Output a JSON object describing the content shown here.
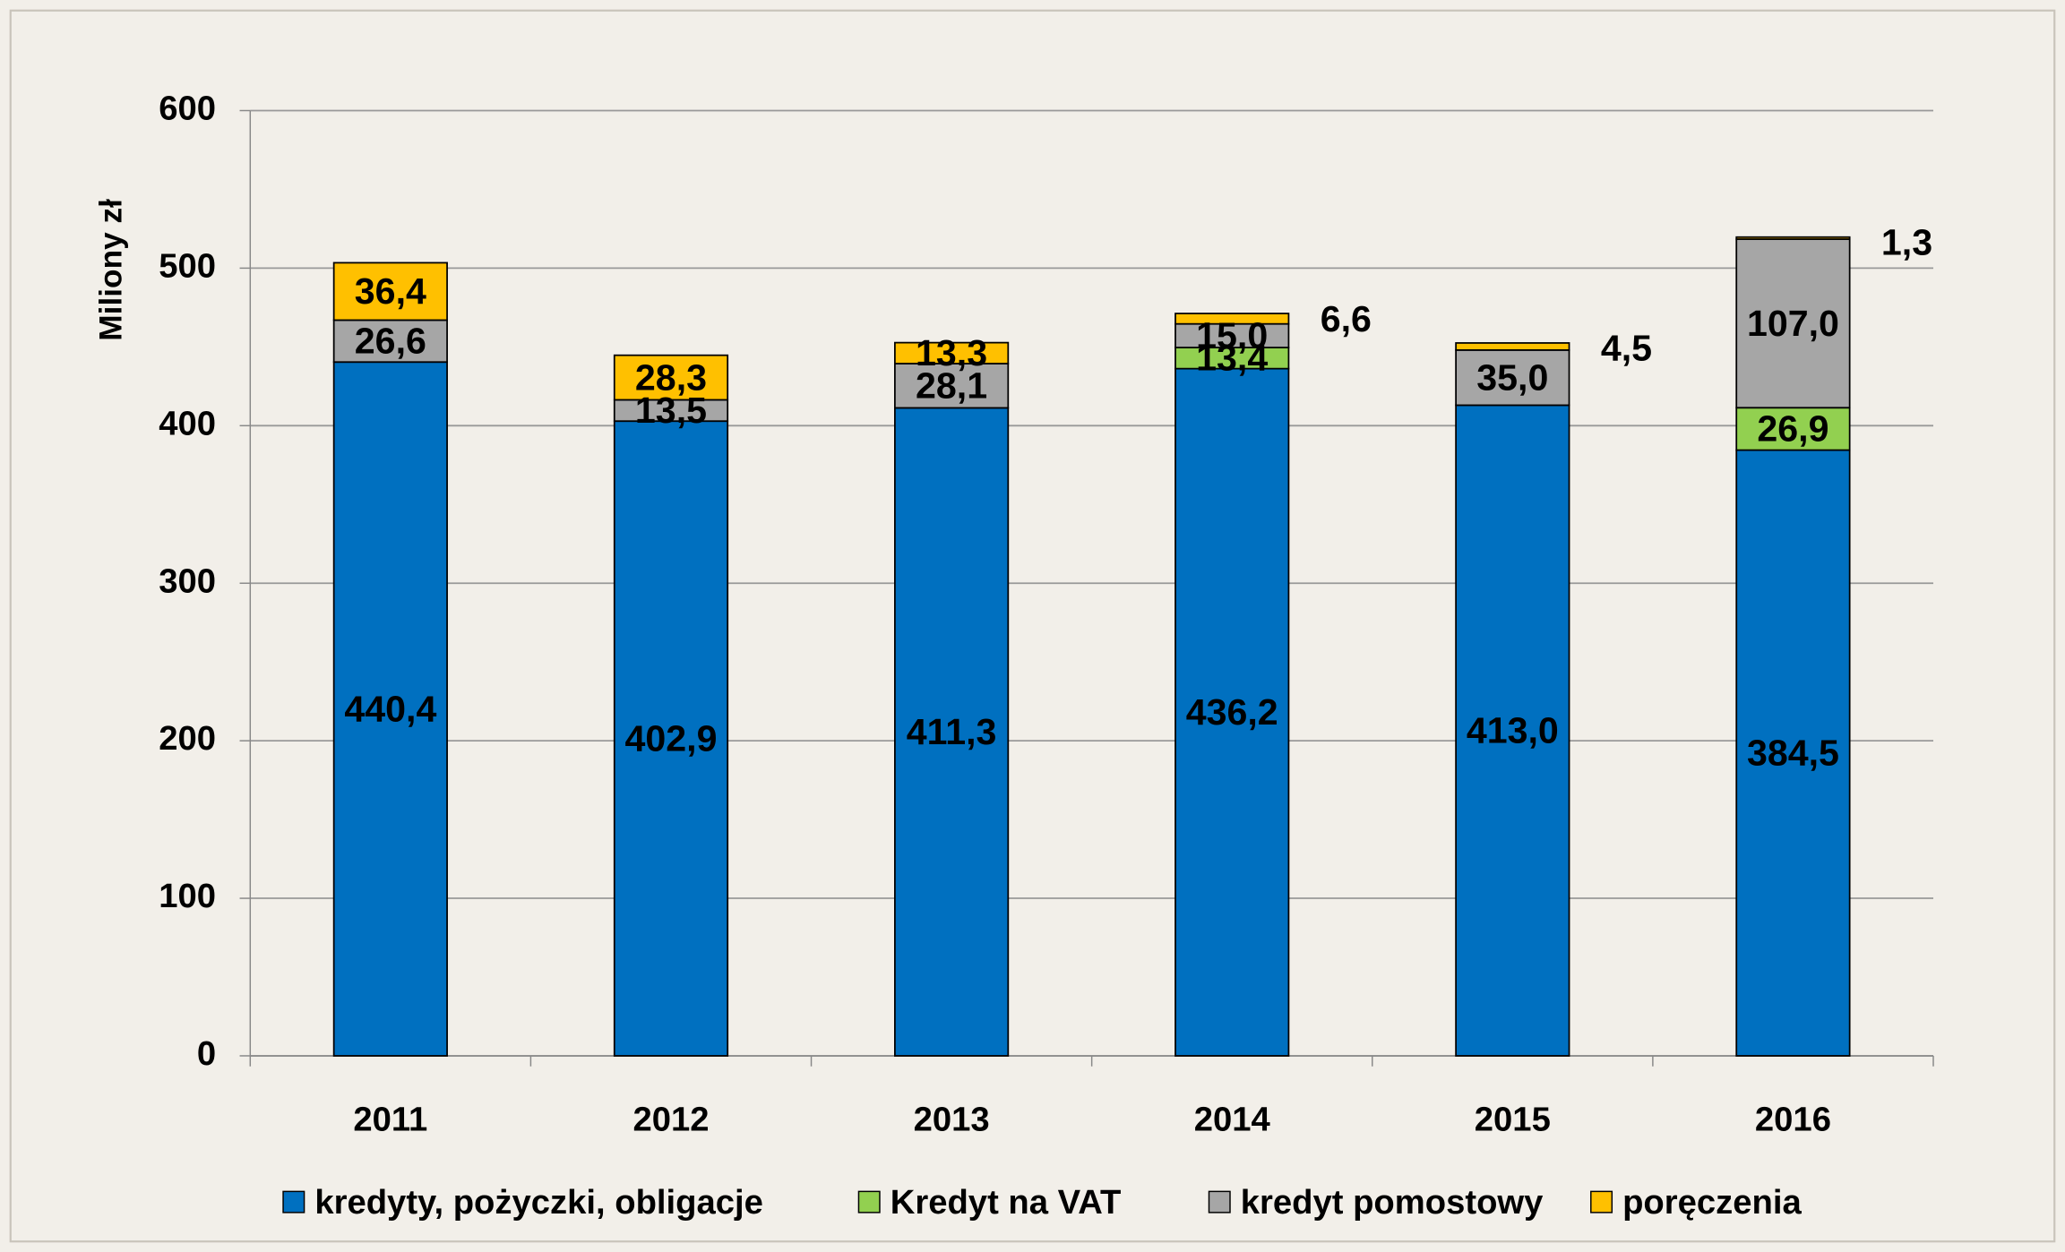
{
  "chart_data": {
    "type": "stacked_bar",
    "y_label": "Miliony zł",
    "categories": [
      "2011",
      "2012",
      "2013",
      "2014",
      "2015",
      "2016"
    ],
    "series": [
      {
        "name": "kredyty, pożyczki, obligacje",
        "color": "#0070c0",
        "values": [
          440.4,
          402.9,
          411.3,
          436.2,
          413.0,
          384.5
        ],
        "value_labels": [
          "440,4",
          "402,9",
          "411,3",
          "436,2",
          "413,0",
          "384,5"
        ]
      },
      {
        "name": "Kredyt na VAT",
        "color": "#92d050",
        "values": [
          null,
          null,
          null,
          13.4,
          null,
          26.9
        ],
        "value_labels": [
          null,
          null,
          null,
          "13,4",
          null,
          "26,9"
        ]
      },
      {
        "name": "kredyt pomostowy",
        "color": "#a6a6a6",
        "values": [
          26.6,
          13.5,
          28.1,
          15.0,
          35.0,
          107.0
        ],
        "value_labels": [
          "26,6",
          "13,5",
          "28,1",
          "15,0",
          "35,0",
          "107,0"
        ]
      },
      {
        "name": "poręczenia",
        "color": "#ffc000",
        "values": [
          36.4,
          28.3,
          13.3,
          6.6,
          4.5,
          1.3
        ],
        "value_labels": [
          "36,4",
          "28,3",
          "13,3",
          "6,6",
          "4,5",
          "1,3"
        ]
      }
    ],
    "ylim": [
      0,
      600
    ],
    "yticks": [
      0,
      100,
      200,
      300,
      400,
      500,
      600
    ],
    "grid": true,
    "legend": "bottom"
  }
}
